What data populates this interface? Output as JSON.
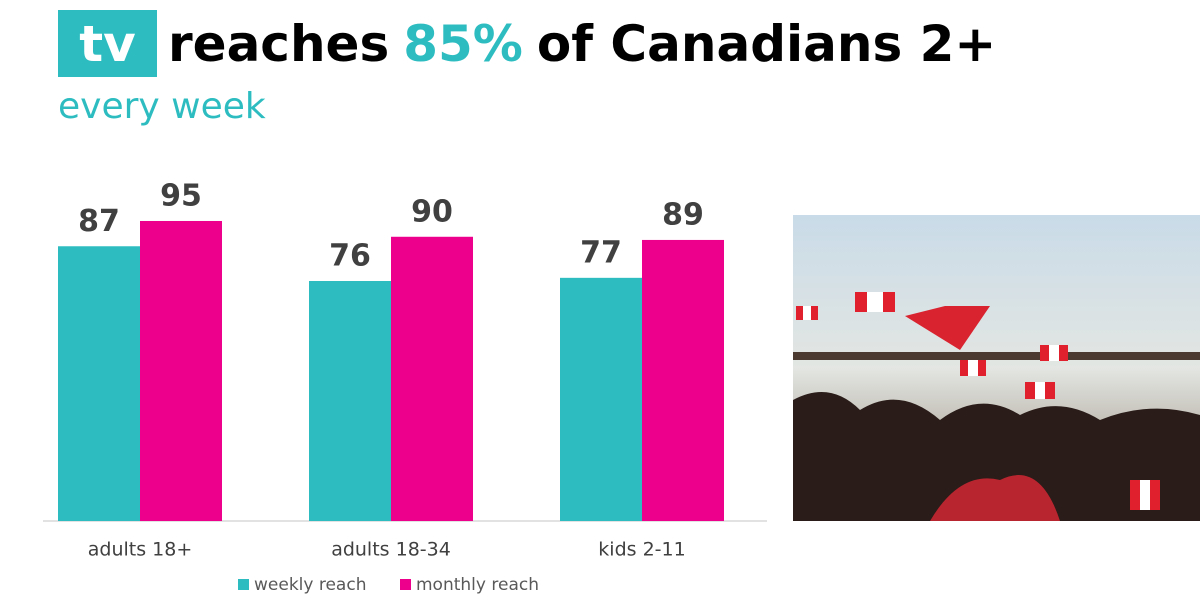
{
  "header": {
    "badge": "tv",
    "title_parts": [
      "reaches",
      "85%",
      "of Canadians 2+"
    ],
    "subtitle": "every week"
  },
  "chart_data": {
    "type": "bar",
    "categories": [
      "adults 18+",
      "adults 18-34",
      "kids 2-11"
    ],
    "series": [
      {
        "name": "weekly reach",
        "color": "#2dbdc1",
        "values": [
          87,
          76,
          77
        ]
      },
      {
        "name": "monthly reach",
        "color": "#ec008c",
        "values": [
          95,
          90,
          89
        ]
      }
    ],
    "legend": "bottom"
  }
}
